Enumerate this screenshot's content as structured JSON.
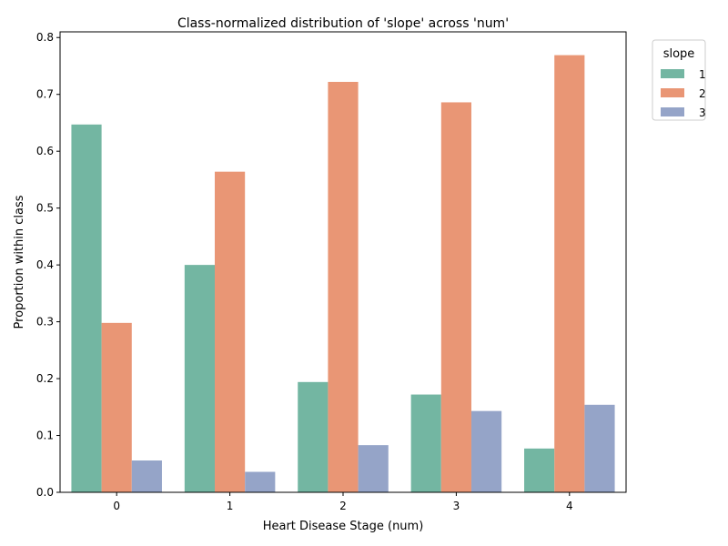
{
  "chart_data": {
    "type": "bar",
    "title": "Class-normalized distribution of 'slope' across 'num'",
    "xlabel": "Heart Disease Stage (num)",
    "ylabel": "Proportion within class",
    "categories": [
      "0",
      "1",
      "2",
      "3",
      "4"
    ],
    "ylim": [
      0,
      0.81
    ],
    "yticks": [
      0.0,
      0.1,
      0.2,
      0.3,
      0.4,
      0.5,
      0.6,
      0.7,
      0.8
    ],
    "ytick_labels": [
      "0.0",
      "0.1",
      "0.2",
      "0.3",
      "0.4",
      "0.5",
      "0.6",
      "0.7",
      "0.8"
    ],
    "grid": false,
    "legend": {
      "title": "slope",
      "placement": "outside top-right"
    },
    "series": [
      {
        "name": "1",
        "color": "#73b6a2",
        "values": [
          0.647,
          0.4,
          0.194,
          0.172,
          0.077
        ]
      },
      {
        "name": "2",
        "color": "#e99675",
        "values": [
          0.298,
          0.564,
          0.722,
          0.686,
          0.769
        ]
      },
      {
        "name": "3",
        "color": "#95a4c8",
        "values": [
          0.056,
          0.036,
          0.083,
          0.143,
          0.154
        ]
      }
    ]
  }
}
